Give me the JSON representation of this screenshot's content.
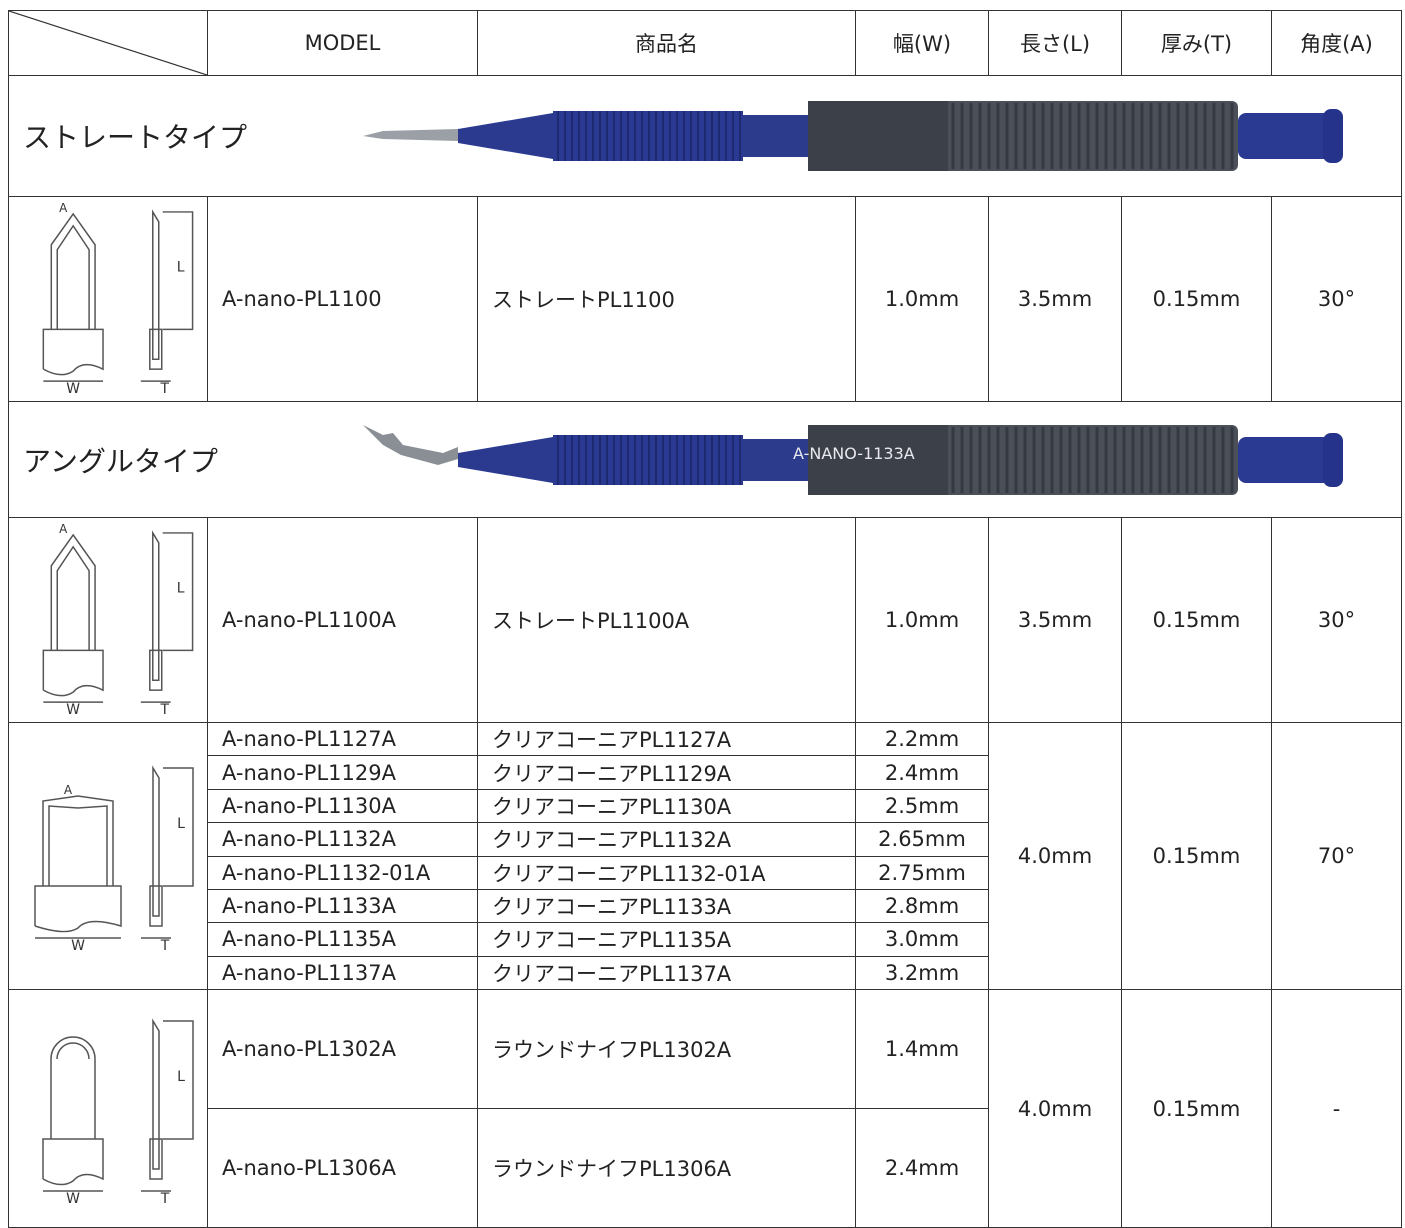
{
  "table": {
    "header": [
      "MODEL",
      "商品名",
      "幅(W)",
      "長さ(L)",
      "厚み(T)",
      "角度(A)"
    ],
    "blocks": [
      {
        "section": "ストレートタイプ",
        "groups": [
          {
            "diagram_labels": {
              "a": "A",
              "l": "L",
              "w": "W",
              "t": "T"
            },
            "items": [
              {
                "model": "A-nano-PL1100",
                "name": "ストレートPL1100",
                "width": "1.0mm"
              }
            ],
            "length": "3.5mm",
            "thickness": "0.15mm",
            "angle": "30°"
          }
        ]
      },
      {
        "section": "アングルタイプ",
        "pen_text": "A-NANO-1133A",
        "groups": [
          {
            "diagram_labels": {
              "a": "A",
              "l": "L",
              "w": "W",
              "t": "T"
            },
            "items": [
              {
                "model": "A-nano-PL1100A",
                "name": "ストレートPL1100A",
                "width": "1.0mm"
              }
            ],
            "length": "3.5mm",
            "thickness": "0.15mm",
            "angle": "30°"
          },
          {
            "diagram_labels": {
              "a": "A",
              "l": "L",
              "w": "W",
              "t": "T"
            },
            "items": [
              {
                "model": "A-nano-PL1127A",
                "name": "クリアコーニアPL1127A",
                "width": "2.2mm"
              },
              {
                "model": "A-nano-PL1129A",
                "name": "クリアコーニアPL1129A",
                "width": "2.4mm"
              },
              {
                "model": "A-nano-PL1130A",
                "name": "クリアコーニアPL1130A",
                "width": "2.5mm"
              },
              {
                "model": "A-nano-PL1132A",
                "name": "クリアコーニアPL1132A",
                "width": "2.65mm"
              },
              {
                "model": "A-nano-PL1132-01A",
                "name": "クリアコーニアPL1132-01A",
                "width": "2.75mm"
              },
              {
                "model": "A-nano-PL1133A",
                "name": "クリアコーニアPL1133A",
                "width": "2.8mm"
              },
              {
                "model": "A-nano-PL1135A",
                "name": "クリアコーニアPL1135A",
                "width": "3.0mm"
              },
              {
                "model": "A-nano-PL1137A",
                "name": "クリアコーニアPL1137A",
                "width": "3.2mm"
              }
            ],
            "length": "4.0mm",
            "thickness": "0.15mm",
            "angle": "70°"
          },
          {
            "diagram_labels": {
              "l": "L",
              "w": "W",
              "t": "T"
            },
            "items": [
              {
                "model": "A-nano-PL1302A",
                "name": "ラウンドナイフPL1302A",
                "width": "1.4mm"
              },
              {
                "model": "A-nano-PL1306A",
                "name": "ラウンドナイフPL1306A",
                "width": "2.4mm"
              }
            ],
            "length": "4.0mm",
            "thickness": "0.15mm",
            "angle": "-"
          }
        ]
      }
    ]
  }
}
